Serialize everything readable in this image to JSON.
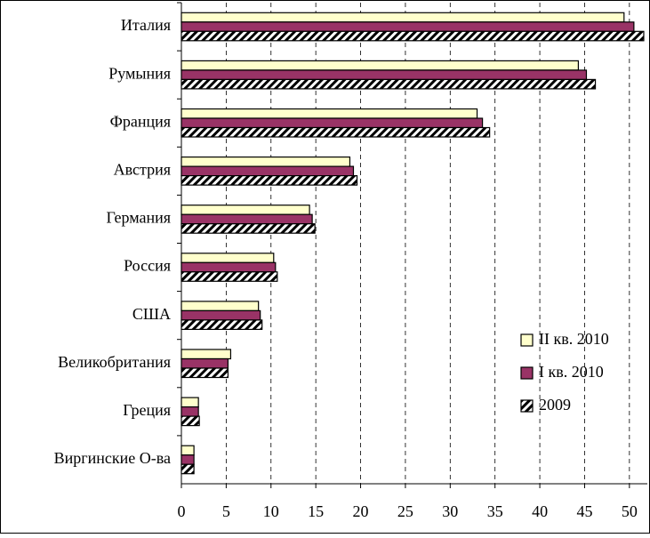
{
  "chart_data": {
    "type": "barh",
    "categories": [
      "Италия",
      "Румыния",
      "Франция",
      "Австрия",
      "Германия",
      "Россия",
      "США",
      "Великобритания",
      "Греция",
      "Виргинские О-ва"
    ],
    "series": [
      {
        "name": "II кв. 2010",
        "color": "#ffffcc",
        "values": [
          49.4,
          44.3,
          33.0,
          18.8,
          14.3,
          10.3,
          8.6,
          5.5,
          1.9,
          1.4
        ]
      },
      {
        "name": "I кв. 2010",
        "color": "#993366",
        "values": [
          50.5,
          45.2,
          33.6,
          19.2,
          14.6,
          10.5,
          8.8,
          5.2,
          1.9,
          1.4
        ]
      },
      {
        "name": "2009",
        "color": "#000000",
        "hatch": true,
        "values": [
          51.6,
          46.2,
          34.4,
          19.6,
          14.9,
          10.7,
          9.0,
          5.2,
          2.0,
          1.4
        ]
      }
    ],
    "xlim": [
      0,
      52
    ],
    "xticks": [
      0,
      5,
      10,
      15,
      20,
      25,
      30,
      35,
      40,
      45,
      50
    ],
    "grid": true,
    "legend": "lower right"
  }
}
